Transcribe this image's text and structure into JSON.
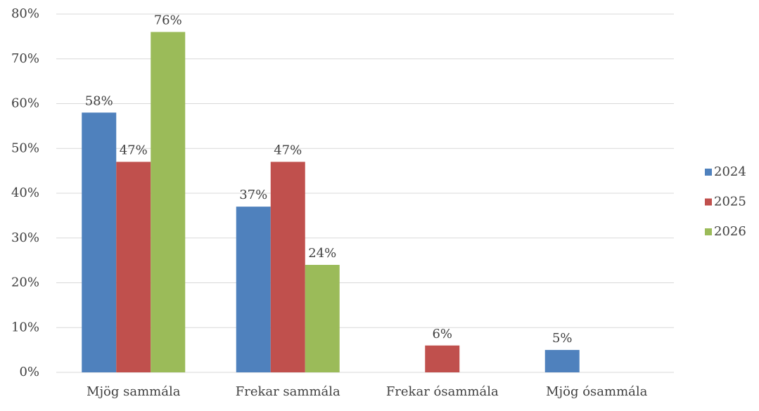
{
  "chart_data": {
    "type": "bar",
    "categories": [
      "Mjög sammála",
      "Frekar sammála",
      "Frekar ósammála",
      "Mjög ósammála"
    ],
    "series": [
      {
        "name": "2024",
        "color": "#4f81bd",
        "values": [
          58,
          37,
          null,
          5
        ],
        "value_labels": [
          "58%",
          "37%",
          null,
          "5%"
        ]
      },
      {
        "name": "2025",
        "color": "#c0504d",
        "values": [
          47,
          47,
          6,
          null
        ],
        "value_labels": [
          "47%",
          "47%",
          "6%",
          null
        ]
      },
      {
        "name": "2026",
        "color": "#9bbb59",
        "values": [
          76,
          24,
          null,
          null
        ],
        "value_labels": [
          "76%",
          "24%",
          null,
          null
        ]
      }
    ],
    "ylim": [
      0,
      80
    ],
    "yticks": [
      {
        "value": 0,
        "label": "0%"
      },
      {
        "value": 10,
        "label": "10%"
      },
      {
        "value": 20,
        "label": "20%"
      },
      {
        "value": 30,
        "label": "30%"
      },
      {
        "value": 40,
        "label": "40%"
      },
      {
        "value": 50,
        "label": "50%"
      },
      {
        "value": 60,
        "label": "60%"
      },
      {
        "value": 70,
        "label": "70%"
      },
      {
        "value": 80,
        "label": "80%"
      }
    ],
    "grid": true,
    "legend": "right"
  }
}
